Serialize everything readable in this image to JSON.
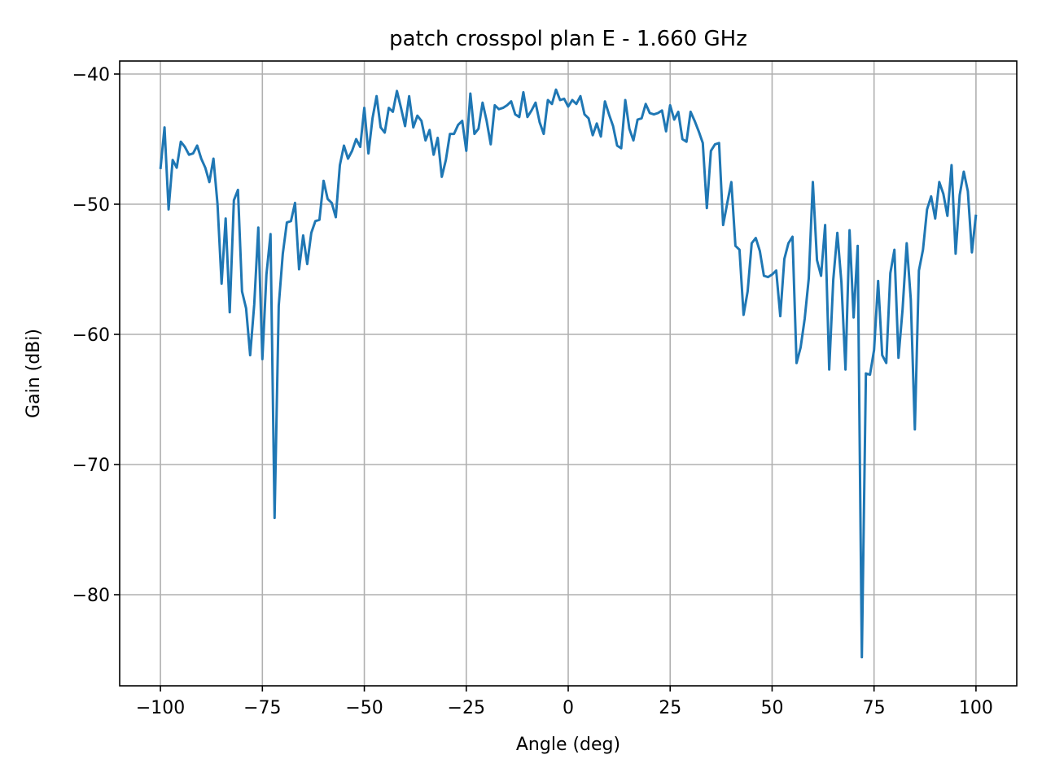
{
  "chart_data": {
    "type": "line",
    "title": "patch crosspol plan E - 1.660 GHz",
    "xlabel": "Angle (deg)",
    "ylabel": "Gain (dBi)",
    "xlim": [
      -110,
      110
    ],
    "ylim": [
      -87,
      -39
    ],
    "xticks": [
      -100,
      -75,
      -50,
      -25,
      0,
      25,
      50,
      75,
      100
    ],
    "xtick_labels": [
      "−100",
      "−75",
      "−50",
      "−25",
      "0",
      "25",
      "50",
      "75",
      "100"
    ],
    "yticks": [
      -80,
      -70,
      -60,
      -50,
      -40
    ],
    "ytick_labels": [
      "−80",
      "−70",
      "−60",
      "−50",
      "−40"
    ],
    "grid": true,
    "line_color": "#1f77b4",
    "series": [
      {
        "x": [
          -100,
          -99,
          -98,
          -97,
          -96,
          -95,
          -94,
          -93,
          -92,
          -91,
          -90,
          -89,
          -88,
          -87,
          -86,
          -85,
          -84,
          -83,
          -82,
          -81,
          -80,
          -79,
          -78,
          -77,
          -76,
          -75,
          -74,
          -73,
          -72,
          -71,
          -70,
          -69,
          -68,
          -67,
          -66,
          -65,
          -64,
          -63,
          -62,
          -61,
          -60,
          -59,
          -58,
          -57,
          -56,
          -55,
          -54,
          -53,
          -52,
          -51,
          -50,
          -49,
          -48,
          -47,
          -46,
          -45,
          -44,
          -43,
          -42,
          -41,
          -40,
          -39,
          -38,
          -37,
          -36,
          -35,
          -34,
          -33,
          -32,
          -31,
          -30,
          -29,
          -28,
          -27,
          -26,
          -25,
          -24,
          -23,
          -22,
          -21,
          -20,
          -19,
          -18,
          -17,
          -16,
          -15,
          -14,
          -13,
          -12,
          -11,
          -10,
          -9,
          -8,
          -7,
          -6,
          -5,
          -4,
          -3,
          -2,
          -1,
          0,
          1,
          2,
          3,
          4,
          5,
          6,
          7,
          8,
          9,
          10,
          11,
          12,
          13,
          14,
          15,
          16,
          17,
          18,
          19,
          20,
          21,
          22,
          23,
          24,
          25,
          26,
          27,
          28,
          29,
          30,
          31,
          32,
          33,
          34,
          35,
          36,
          37,
          38,
          39,
          40,
          41,
          42,
          43,
          44,
          45,
          46,
          47,
          48,
          49,
          50,
          51,
          52,
          53,
          54,
          55,
          56,
          57,
          58,
          59,
          60,
          61,
          62,
          63,
          64,
          65,
          66,
          67,
          68,
          69,
          70,
          71,
          72,
          73,
          74,
          75,
          76,
          77,
          78,
          79,
          80,
          81,
          82,
          83,
          84,
          85,
          86,
          87,
          88,
          89,
          90,
          91,
          92,
          93,
          94,
          95,
          96,
          97,
          98,
          99,
          100
        ],
        "y": [
          -47.3,
          -44.1,
          -50.4,
          -46.6,
          -47.2,
          -45.2,
          -45.6,
          -46.2,
          -46.1,
          -45.5,
          -46.5,
          -47.2,
          -48.3,
          -46.5,
          -50.0,
          -56.1,
          -51.1,
          -58.3,
          -49.7,
          -48.9,
          -56.7,
          -58.0,
          -61.6,
          -57.7,
          -51.8,
          -61.9,
          -55.4,
          -52.3,
          -74.1,
          -57.8,
          -53.8,
          -51.4,
          -51.3,
          -49.9,
          -55.0,
          -52.4,
          -54.6,
          -52.2,
          -51.3,
          -51.2,
          -48.2,
          -49.6,
          -49.9,
          -51.0,
          -47.0,
          -45.5,
          -46.5,
          -45.9,
          -45.0,
          -45.6,
          -42.6,
          -46.1,
          -43.4,
          -41.7,
          -44.1,
          -44.5,
          -42.6,
          -42.9,
          -41.3,
          -42.6,
          -44.0,
          -41.7,
          -44.1,
          -43.2,
          -43.6,
          -45.1,
          -44.3,
          -46.2,
          -44.9,
          -47.9,
          -46.6,
          -44.6,
          -44.6,
          -43.9,
          -43.6,
          -45.9,
          -41.5,
          -44.6,
          -44.2,
          -42.2,
          -43.6,
          -45.4,
          -42.4,
          -42.7,
          -42.6,
          -42.4,
          -42.1,
          -43.1,
          -43.3,
          -41.4,
          -43.3,
          -42.8,
          -42.2,
          -43.7,
          -44.6,
          -42.0,
          -42.3,
          -41.2,
          -42.0,
          -41.9,
          -42.5,
          -42.0,
          -42.3,
          -41.7,
          -43.1,
          -43.4,
          -44.7,
          -43.8,
          -44.8,
          -42.1,
          -43.1,
          -44.0,
          -45.5,
          -45.7,
          -42.0,
          -44.2,
          -45.1,
          -43.5,
          -43.4,
          -42.3,
          -43.0,
          -43.1,
          -43.0,
          -42.8,
          -44.4,
          -42.4,
          -43.5,
          -42.9,
          -45.0,
          -45.2,
          -42.9,
          -43.6,
          -44.4,
          -45.3,
          -50.3,
          -45.9,
          -45.4,
          -45.3,
          -51.6,
          -49.9,
          -48.3,
          -53.2,
          -53.5,
          -58.5,
          -56.7,
          -53.0,
          -52.6,
          -53.6,
          -55.5,
          -55.6,
          -55.4,
          -55.1,
          -58.6,
          -54.2,
          -53.0,
          -52.5,
          -62.2,
          -61.0,
          -58.8,
          -55.7,
          -48.3,
          -54.3,
          -55.5,
          -51.6,
          -62.7,
          -55.8,
          -52.2,
          -56.0,
          -62.7,
          -52.0,
          -58.7,
          -53.2,
          -84.8,
          -63.0,
          -63.1,
          -61.2,
          -55.9,
          -61.6,
          -62.2,
          -55.3,
          -53.5,
          -61.8,
          -58.1,
          -53.0,
          -57.3,
          -67.3,
          -55.1,
          -53.5,
          -50.4,
          -49.4,
          -51.1,
          -48.3,
          -49.2,
          -50.9,
          -47.0,
          -53.8,
          -49.3,
          -47.5,
          -49.0,
          -53.7,
          -50.8
        ]
      }
    ]
  }
}
